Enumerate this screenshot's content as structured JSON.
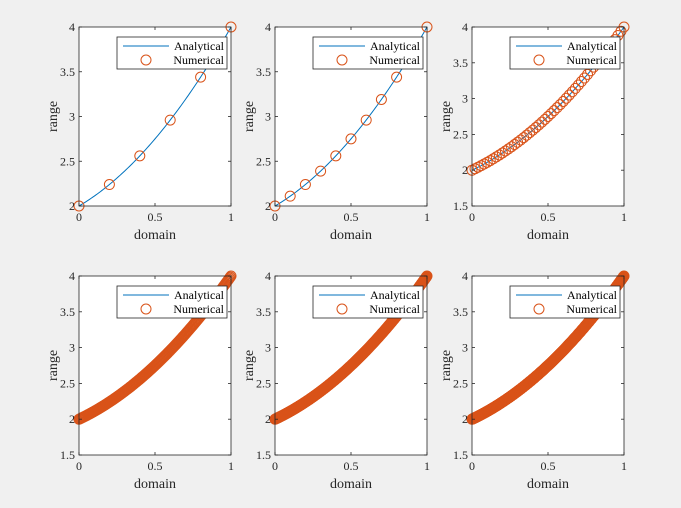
{
  "colors": {
    "figure_bg": "#f0f0f0",
    "axes_bg": "#ffffff",
    "analytical_line": "#0072bd",
    "numerical_marker": "#d95319",
    "axis": "#262626"
  },
  "chart_data": [
    {
      "type": "line",
      "xlabel": "domain",
      "ylabel": "range",
      "xlim": [
        0,
        1
      ],
      "ylim": [
        2,
        4
      ],
      "xticks": [
        "0",
        "0.5",
        "1"
      ],
      "yticks": [
        "2",
        "2.5",
        "3",
        "3.5",
        "4"
      ],
      "grid": false,
      "legend_position": "top-right",
      "series": [
        {
          "name": "Analytical",
          "style": "line",
          "function": "2 + x + x^2",
          "samples": 101
        },
        {
          "name": "Numerical",
          "style": "circle-markers",
          "x_start": 0,
          "x_end": 1,
          "points": 6
        }
      ]
    },
    {
      "type": "line",
      "xlabel": "domain",
      "ylabel": "range",
      "xlim": [
        0,
        1
      ],
      "ylim": [
        2,
        4
      ],
      "xticks": [
        "0",
        "0.5",
        "1"
      ],
      "yticks": [
        "2",
        "2.5",
        "3",
        "3.5",
        "4"
      ],
      "grid": false,
      "legend_position": "top-right",
      "series": [
        {
          "name": "Analytical",
          "style": "line",
          "function": "2 + x + x^2",
          "samples": 101
        },
        {
          "name": "Numerical",
          "style": "circle-markers",
          "x_start": 0,
          "x_end": 1,
          "points": 11
        }
      ]
    },
    {
      "type": "line",
      "xlabel": "domain",
      "ylabel": "range",
      "xlim": [
        0,
        1
      ],
      "ylim": [
        1.5,
        4
      ],
      "xticks": [
        "0",
        "0.5",
        "1"
      ],
      "yticks": [
        "1.5",
        "2",
        "2.5",
        "3",
        "3.5",
        "4"
      ],
      "grid": false,
      "legend_position": "top-right",
      "series": [
        {
          "name": "Analytical",
          "style": "line",
          "function": "2 + x + x^2",
          "samples": 101
        },
        {
          "name": "Numerical",
          "style": "circle-markers",
          "x_start": 0,
          "x_end": 1,
          "points": 51
        }
      ]
    },
    {
      "type": "line",
      "xlabel": "domain",
      "ylabel": "range",
      "xlim": [
        0,
        1
      ],
      "ylim": [
        1.5,
        4
      ],
      "xticks": [
        "0",
        "0.5",
        "1"
      ],
      "yticks": [
        "1.5",
        "2",
        "2.5",
        "3",
        "3.5",
        "4"
      ],
      "grid": false,
      "legend_position": "top-right",
      "series": [
        {
          "name": "Analytical",
          "style": "line",
          "function": "2 + x + x^2",
          "samples": 101
        },
        {
          "name": "Numerical",
          "style": "circle-markers",
          "x_start": 0,
          "x_end": 1,
          "points": 201
        }
      ]
    },
    {
      "type": "line",
      "xlabel": "domain",
      "ylabel": "range",
      "xlim": [
        0,
        1
      ],
      "ylim": [
        1.5,
        4
      ],
      "xticks": [
        "0",
        "0.5",
        "1"
      ],
      "yticks": [
        "1.5",
        "2",
        "2.5",
        "3",
        "3.5",
        "4"
      ],
      "grid": false,
      "legend_position": "top-right",
      "series": [
        {
          "name": "Analytical",
          "style": "line",
          "function": "2 + x + x^2",
          "samples": 101
        },
        {
          "name": "Numerical",
          "style": "circle-markers",
          "x_start": 0,
          "x_end": 1,
          "points": 401
        }
      ]
    },
    {
      "type": "line",
      "xlabel": "domain",
      "ylabel": "range",
      "xlim": [
        0,
        1
      ],
      "ylim": [
        1.5,
        4
      ],
      "xticks": [
        "0",
        "0.5",
        "1"
      ],
      "yticks": [
        "1.5",
        "2",
        "2.5",
        "3",
        "3.5",
        "4"
      ],
      "grid": false,
      "legend_position": "top-right",
      "series": [
        {
          "name": "Analytical",
          "style": "line",
          "function": "2 + x + x^2",
          "samples": 101
        },
        {
          "name": "Numerical",
          "style": "circle-markers",
          "x_start": 0,
          "x_end": 1,
          "points": 801
        }
      ]
    }
  ]
}
